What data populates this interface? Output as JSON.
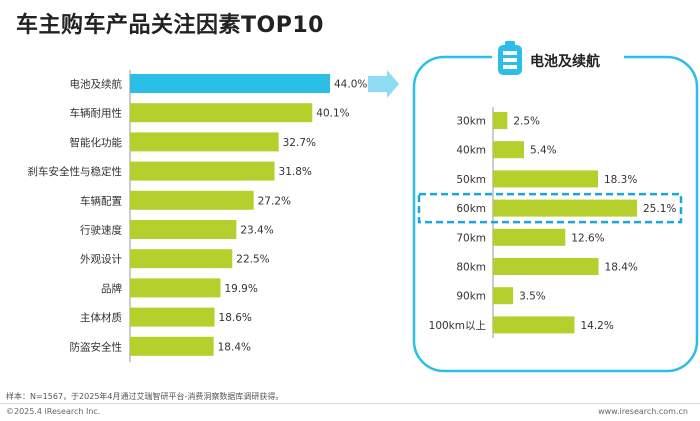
{
  "title": "车主购车产品关注因素TOP10",
  "colors": {
    "bar": "#b5cf2d",
    "highlight": "#2bbfe8",
    "detail_frame": "#2bbfe8",
    "arrow": "#8fdcf2",
    "dashed_box": "#1aa7dc"
  },
  "chart_data": [
    {
      "type": "bar",
      "orientation": "horizontal",
      "title": "车主购车产品关注因素TOP10",
      "categories": [
        "电池及续航",
        "车辆耐用性",
        "智能化功能",
        "刹车安全性与稳定性",
        "车辆配置",
        "行驶速度",
        "外观设计",
        "品牌",
        "主体材质",
        "防盗安全性"
      ],
      "values": [
        44.0,
        40.1,
        32.7,
        31.8,
        27.2,
        23.4,
        22.5,
        19.9,
        18.6,
        18.4
      ],
      "value_labels": [
        "44.0%",
        "40.1%",
        "32.7%",
        "31.8%",
        "27.2%",
        "23.4%",
        "22.5%",
        "19.9%",
        "18.6%",
        "18.4%"
      ],
      "highlighted_category": "电池及续航",
      "xlim": [
        0,
        44
      ]
    },
    {
      "type": "bar",
      "orientation": "horizontal",
      "title": "电池及续航",
      "categories": [
        "30km",
        "40km",
        "50km",
        "60km",
        "70km",
        "80km",
        "90km",
        "100km以上"
      ],
      "values": [
        2.5,
        5.4,
        18.3,
        25.1,
        12.6,
        18.4,
        3.5,
        14.2
      ],
      "value_labels": [
        "2.5%",
        "5.4%",
        "18.3%",
        "25.1%",
        "12.6%",
        "18.4%",
        "3.5%",
        "14.2%"
      ],
      "highlighted_category": "60km",
      "xlim": [
        0,
        25.1
      ]
    }
  ],
  "footer": {
    "note": "样本：N=1567，于2025年4月通过艾瑞智研平台-消费洞察数据库调研获得。",
    "copyright": "©2025.4 iResearch Inc.",
    "url": "www.iresearch.com.cn"
  }
}
